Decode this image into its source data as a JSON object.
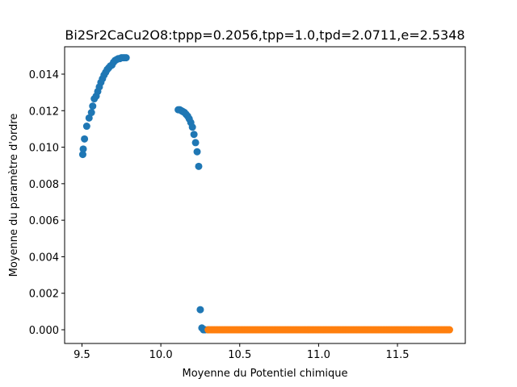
{
  "chart_data": {
    "type": "scatter",
    "title": "Bi2Sr2CaCu2O8:tppp=0.2056,tpp=1.0,tpd=2.0711,e=2.5348",
    "xlabel": "Moyenne du Potentiel chimique",
    "ylabel": "Moyenne du paramètre d'ordre",
    "xlim": [
      9.39,
      11.93
    ],
    "ylim": [
      -0.00075,
      0.0155
    ],
    "xticks": [
      9.5,
      10.0,
      10.5,
      11.0,
      11.5
    ],
    "xtick_labels": [
      "9.5",
      "10.0",
      "10.5",
      "11.0",
      "11.5"
    ],
    "yticks": [
      0.0,
      0.002,
      0.004,
      0.006,
      0.008,
      0.01,
      0.012,
      0.014
    ],
    "ytick_labels": [
      "0.000",
      "0.002",
      "0.004",
      "0.006",
      "0.008",
      "0.010",
      "0.012",
      "0.014"
    ],
    "grid": false,
    "legend": "none",
    "series": [
      {
        "color": "#1f77b4",
        "x": [
          9.505,
          9.508,
          9.516,
          9.53,
          9.545,
          9.56,
          9.568,
          9.578,
          9.59,
          9.6,
          9.61,
          9.62,
          9.63,
          9.64,
          9.65,
          9.66,
          9.67,
          9.68,
          9.69,
          9.7,
          9.71,
          9.72,
          9.73,
          9.74,
          9.75,
          9.76,
          9.77,
          9.78,
          10.11,
          10.12,
          10.13,
          10.14,
          10.15,
          10.16,
          10.17,
          10.18,
          10.19,
          10.2,
          10.21,
          10.22,
          10.23,
          10.24,
          10.25,
          10.26,
          10.27,
          10.28,
          10.3
        ],
        "y": [
          0.0096,
          0.0099,
          0.01045,
          0.01115,
          0.0116,
          0.0119,
          0.01225,
          0.01265,
          0.0128,
          0.01305,
          0.0133,
          0.01355,
          0.01375,
          0.01395,
          0.0141,
          0.01425,
          0.01435,
          0.01445,
          0.0145,
          0.01465,
          0.01475,
          0.0148,
          0.01485,
          0.01485,
          0.0149,
          0.0149,
          0.0149,
          0.0149,
          0.01205,
          0.01205,
          0.012,
          0.01195,
          0.0119,
          0.0118,
          0.0117,
          0.01155,
          0.01135,
          0.0111,
          0.0107,
          0.01025,
          0.00975,
          0.00895,
          0.0011,
          0.0001,
          0.0,
          0.0,
          0.0
        ]
      },
      {
        "color": "#ff7f0e",
        "x_start": 10.3,
        "x_end": 11.83,
        "x_step": 0.01,
        "y_constant": 0.0
      }
    ]
  }
}
